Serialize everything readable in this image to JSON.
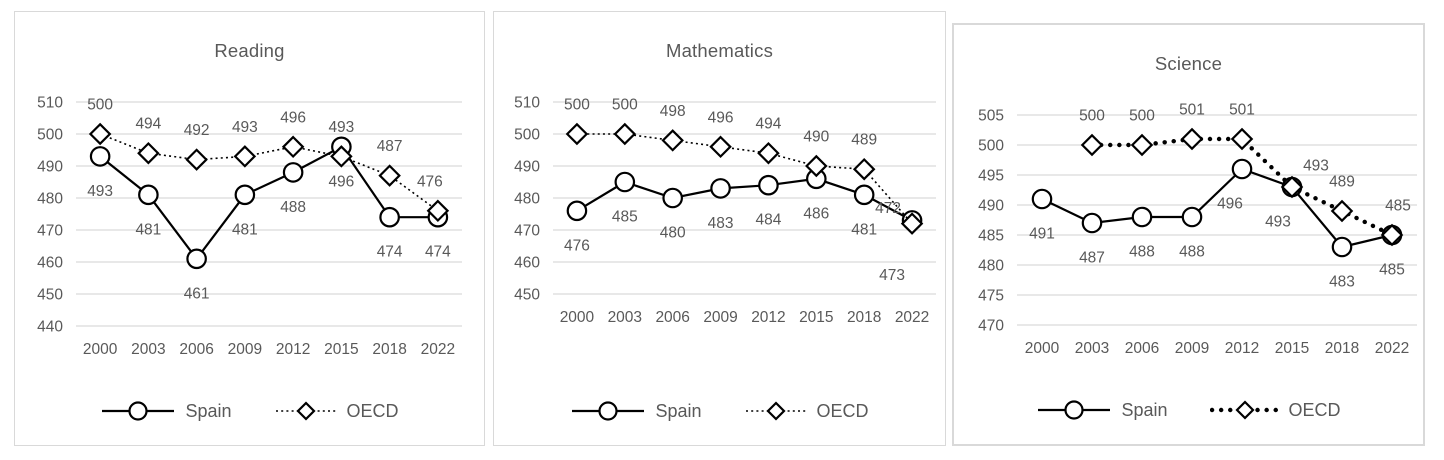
{
  "colors": {
    "text": "#595959",
    "series_stroke": "#000000",
    "gridline": "#d9d9d9",
    "panel_border": "#d9d9d9",
    "background": "#ffffff"
  },
  "chart_data": [
    {
      "type": "line",
      "title": "Reading",
      "categories": [
        "2000",
        "2003",
        "2006",
        "2009",
        "2012",
        "2015",
        "2018",
        "2022"
      ],
      "y_axis": {
        "min": 440,
        "max": 510,
        "step": 10
      },
      "grid": true,
      "legend_position": "bottom",
      "series": [
        {
          "name": "Spain",
          "marker": "circle",
          "line_style": "solid",
          "data_labels": "below",
          "values": [
            493,
            481,
            461,
            481,
            488,
            496,
            474,
            474
          ]
        },
        {
          "name": "OECD",
          "marker": "diamond",
          "line_style": "dot",
          "data_labels": "above",
          "values": [
            500,
            494,
            492,
            493,
            496,
            493,
            487,
            476
          ],
          "label_offsets": {
            "7": {
              "dx": -8,
              "dy": 0
            }
          }
        }
      ]
    },
    {
      "type": "line",
      "title": "Mathematics",
      "categories": [
        "2000",
        "2003",
        "2006",
        "2009",
        "2012",
        "2015",
        "2018",
        "2022"
      ],
      "y_axis": {
        "min": 450,
        "max": 510,
        "step": 10
      },
      "grid": true,
      "legend_position": "bottom",
      "series": [
        {
          "name": "Spain",
          "marker": "circle",
          "line_style": "solid",
          "data_labels": "below",
          "values": [
            476,
            485,
            480,
            483,
            484,
            486,
            481,
            473
          ],
          "label_offsets": {
            "7": {
              "dx": -20,
              "dy": 20
            }
          }
        },
        {
          "name": "OECD",
          "marker": "diamond",
          "line_style": "dot",
          "data_labels": "above",
          "values": [
            500,
            500,
            498,
            496,
            494,
            490,
            489,
            472
          ],
          "label_offsets": {
            "7": {
              "dx": -24,
              "dy": 14
            }
          }
        }
      ]
    },
    {
      "type": "line",
      "title": "Science",
      "categories": [
        "2000",
        "2003",
        "2006",
        "2009",
        "2012",
        "2015",
        "2018",
        "2022"
      ],
      "y_axis": {
        "min": 470,
        "max": 505,
        "step": 5
      },
      "grid": true,
      "legend_position": "bottom",
      "series": [
        {
          "name": "Spain",
          "marker": "circle",
          "line_style": "solid",
          "data_labels": "below",
          "values": [
            491,
            487,
            488,
            488,
            496,
            493,
            483,
            485
          ],
          "label_offsets": {
            "4": {
              "dx": -12,
              "dy": 0
            },
            "5": {
              "dx": -14,
              "dy": 0
            }
          }
        },
        {
          "name": "OECD",
          "marker": "diamond",
          "line_style": "round-dot",
          "data_labels": "above",
          "values": [
            null,
            500,
            500,
            501,
            501,
            493,
            489,
            485
          ],
          "label_offsets": {
            "5": {
              "dx": 24,
              "dy": 8
            },
            "7": {
              "dx": 6,
              "dy": 0
            }
          }
        }
      ]
    }
  ]
}
